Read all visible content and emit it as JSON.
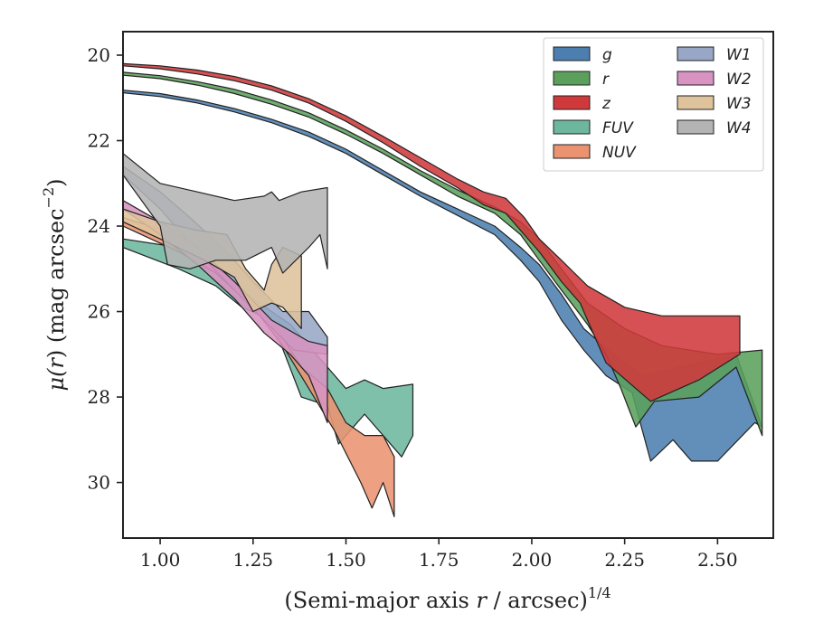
{
  "chart_data": {
    "type": "area",
    "title": "",
    "xlabel": "(Semi-major axis r / arcsec)^1/4",
    "ylabel": "μ(r) (mag arcsec^−2)",
    "xlabel_parts": {
      "pre": "(Semi-major axis ",
      "var": "r",
      "post": " / arcsec)",
      "sup": "1/4"
    },
    "ylabel_parts": {
      "mu": "μ(",
      "var": "r",
      "post": ") (mag arcsec",
      "sup": "−2",
      "close": ")"
    },
    "xlim": [
      0.9,
      2.65
    ],
    "ylim": [
      31.3,
      19.45
    ],
    "y_inverted": true,
    "x_ticks": [
      1.0,
      1.25,
      1.5,
      1.75,
      2.0,
      2.25,
      2.5
    ],
    "x_tick_labels": [
      "1.00",
      "1.25",
      "1.50",
      "1.75",
      "2.00",
      "2.25",
      "2.50"
    ],
    "y_ticks": [
      20,
      22,
      24,
      26,
      28,
      30
    ],
    "y_tick_labels": [
      "20",
      "22",
      "24",
      "26",
      "28",
      "30"
    ],
    "grid": false,
    "legend_position": "top-right",
    "legend_columns": 2,
    "series": [
      {
        "name": "g",
        "color": "#4c7fb0",
        "upper": [
          [
            0.9,
            20.82
          ],
          [
            1.0,
            20.9
          ],
          [
            1.1,
            21.05
          ],
          [
            1.2,
            21.25
          ],
          [
            1.3,
            21.5
          ],
          [
            1.4,
            21.8
          ],
          [
            1.5,
            22.2
          ],
          [
            1.6,
            22.7
          ],
          [
            1.7,
            23.2
          ],
          [
            1.8,
            23.6
          ],
          [
            1.9,
            24.0
          ],
          [
            1.97,
            24.5
          ],
          [
            2.02,
            24.9
          ],
          [
            2.08,
            25.6
          ],
          [
            2.14,
            26.4
          ],
          [
            2.22,
            27.0
          ],
          [
            2.3,
            27.5
          ],
          [
            2.4,
            27.3
          ],
          [
            2.55,
            27.0
          ],
          [
            2.62,
            28.7
          ]
        ],
        "lower": [
          [
            0.9,
            20.88
          ],
          [
            1.0,
            20.97
          ],
          [
            1.1,
            21.12
          ],
          [
            1.2,
            21.33
          ],
          [
            1.3,
            21.58
          ],
          [
            1.4,
            21.9
          ],
          [
            1.5,
            22.3
          ],
          [
            1.6,
            22.8
          ],
          [
            1.7,
            23.3
          ],
          [
            1.8,
            23.75
          ],
          [
            1.9,
            24.2
          ],
          [
            1.97,
            24.8
          ],
          [
            2.02,
            25.3
          ],
          [
            2.08,
            26.2
          ],
          [
            2.14,
            26.9
          ],
          [
            2.2,
            27.5
          ],
          [
            2.27,
            27.9
          ],
          [
            2.32,
            29.5
          ],
          [
            2.38,
            29.0
          ],
          [
            2.43,
            29.5
          ],
          [
            2.5,
            29.5
          ],
          [
            2.6,
            28.6
          ]
        ]
      },
      {
        "name": "r",
        "color": "#5aa05c",
        "upper": [
          [
            0.9,
            20.4
          ],
          [
            1.0,
            20.48
          ],
          [
            1.1,
            20.62
          ],
          [
            1.2,
            20.8
          ],
          [
            1.3,
            21.05
          ],
          [
            1.4,
            21.35
          ],
          [
            1.5,
            21.75
          ],
          [
            1.6,
            22.2
          ],
          [
            1.7,
            22.7
          ],
          [
            1.8,
            23.15
          ],
          [
            1.9,
            23.55
          ],
          [
            1.97,
            23.9
          ],
          [
            2.02,
            24.3
          ],
          [
            2.08,
            25.0
          ],
          [
            2.15,
            25.8
          ],
          [
            2.25,
            26.4
          ],
          [
            2.35,
            26.8
          ],
          [
            2.5,
            27.0
          ],
          [
            2.62,
            26.9
          ]
        ],
        "lower": [
          [
            0.9,
            20.47
          ],
          [
            1.0,
            20.55
          ],
          [
            1.1,
            20.7
          ],
          [
            1.2,
            20.9
          ],
          [
            1.3,
            21.15
          ],
          [
            1.4,
            21.45
          ],
          [
            1.5,
            21.85
          ],
          [
            1.6,
            22.3
          ],
          [
            1.7,
            22.8
          ],
          [
            1.8,
            23.3
          ],
          [
            1.9,
            23.7
          ],
          [
            1.97,
            24.2
          ],
          [
            2.02,
            24.8
          ],
          [
            2.08,
            25.5
          ],
          [
            2.15,
            26.3
          ],
          [
            2.2,
            27.0
          ],
          [
            2.24,
            27.8
          ],
          [
            2.28,
            28.7
          ],
          [
            2.33,
            28.1
          ],
          [
            2.45,
            28.0
          ],
          [
            2.55,
            27.3
          ],
          [
            2.62,
            28.9
          ]
        ]
      },
      {
        "name": "z",
        "color": "#d0393b",
        "upper": [
          [
            0.9,
            20.2
          ],
          [
            1.0,
            20.25
          ],
          [
            1.1,
            20.35
          ],
          [
            1.2,
            20.5
          ],
          [
            1.3,
            20.72
          ],
          [
            1.4,
            21.02
          ],
          [
            1.5,
            21.42
          ],
          [
            1.6,
            21.9
          ],
          [
            1.7,
            22.4
          ],
          [
            1.8,
            22.9
          ],
          [
            1.87,
            23.2
          ],
          [
            1.93,
            23.35
          ],
          [
            1.98,
            23.8
          ],
          [
            2.02,
            24.3
          ],
          [
            2.08,
            24.8
          ],
          [
            2.15,
            25.4
          ],
          [
            2.25,
            25.9
          ],
          [
            2.35,
            26.1
          ],
          [
            2.56,
            26.1
          ]
        ],
        "lower": [
          [
            0.9,
            20.25
          ],
          [
            1.0,
            20.32
          ],
          [
            1.1,
            20.44
          ],
          [
            1.2,
            20.6
          ],
          [
            1.3,
            20.82
          ],
          [
            1.4,
            21.12
          ],
          [
            1.5,
            21.55
          ],
          [
            1.6,
            22.05
          ],
          [
            1.7,
            22.6
          ],
          [
            1.8,
            23.1
          ],
          [
            1.87,
            23.5
          ],
          [
            1.93,
            23.7
          ],
          [
            1.98,
            24.2
          ],
          [
            2.02,
            24.6
          ],
          [
            2.08,
            25.3
          ],
          [
            2.13,
            25.8
          ],
          [
            2.2,
            27.2
          ],
          [
            2.32,
            28.1
          ],
          [
            2.45,
            27.6
          ],
          [
            2.56,
            27.0
          ]
        ]
      },
      {
        "name": "FUV",
        "color": "#6db79e",
        "upper": [
          [
            0.9,
            24.3
          ],
          [
            1.05,
            24.5
          ],
          [
            1.2,
            25.4
          ],
          [
            1.35,
            26.3
          ],
          [
            1.45,
            27.3
          ],
          [
            1.5,
            27.8
          ],
          [
            1.55,
            27.6
          ],
          [
            1.6,
            27.8
          ],
          [
            1.68,
            27.7
          ]
        ],
        "lower": [
          [
            0.9,
            24.5
          ],
          [
            1.05,
            25.0
          ],
          [
            1.15,
            25.4
          ],
          [
            1.22,
            25.9
          ],
          [
            1.3,
            26.2
          ],
          [
            1.38,
            28.0
          ],
          [
            1.45,
            28.2
          ],
          [
            1.48,
            29.1
          ],
          [
            1.55,
            28.4
          ],
          [
            1.65,
            29.4
          ],
          [
            1.68,
            28.9
          ]
        ]
      },
      {
        "name": "NUV",
        "color": "#eb9371",
        "upper": [
          [
            0.9,
            23.8
          ],
          [
            1.05,
            24.2
          ],
          [
            1.2,
            25.3
          ],
          [
            1.3,
            26.2
          ],
          [
            1.38,
            27.3
          ],
          [
            1.45,
            27.8
          ],
          [
            1.5,
            28.6
          ],
          [
            1.55,
            28.9
          ],
          [
            1.6,
            28.9
          ],
          [
            1.63,
            29.4
          ]
        ],
        "lower": [
          [
            0.9,
            24.0
          ],
          [
            1.05,
            24.6
          ],
          [
            1.15,
            25.1
          ],
          [
            1.25,
            25.9
          ],
          [
            1.33,
            26.8
          ],
          [
            1.4,
            27.8
          ],
          [
            1.47,
            28.8
          ],
          [
            1.54,
            30.0
          ],
          [
            1.57,
            30.6
          ],
          [
            1.6,
            30.0
          ],
          [
            1.63,
            30.8
          ]
        ]
      },
      {
        "name": "W1",
        "color": "#99a7c7",
        "upper": [
          [
            0.9,
            22.6
          ],
          [
            1.0,
            23.2
          ],
          [
            1.08,
            23.8
          ],
          [
            1.18,
            24.6
          ],
          [
            1.25,
            25.3
          ],
          [
            1.33,
            26.0
          ],
          [
            1.4,
            26.0
          ],
          [
            1.45,
            26.6
          ]
        ],
        "lower": [
          [
            0.9,
            22.8
          ],
          [
            1.0,
            23.6
          ],
          [
            1.1,
            24.6
          ],
          [
            1.2,
            25.5
          ],
          [
            1.28,
            26.2
          ],
          [
            1.36,
            26.9
          ],
          [
            1.45,
            27.0
          ]
        ]
      },
      {
        "name": "W2",
        "color": "#d893c2",
        "upper": [
          [
            0.9,
            23.4
          ],
          [
            1.0,
            23.9
          ],
          [
            1.1,
            24.5
          ],
          [
            1.2,
            25.3
          ],
          [
            1.3,
            26.2
          ],
          [
            1.4,
            26.7
          ],
          [
            1.45,
            26.8
          ]
        ],
        "lower": [
          [
            0.9,
            23.6
          ],
          [
            1.0,
            24.2
          ],
          [
            1.1,
            24.9
          ],
          [
            1.2,
            25.7
          ],
          [
            1.28,
            26.5
          ],
          [
            1.35,
            27.0
          ],
          [
            1.4,
            27.5
          ],
          [
            1.45,
            28.6
          ]
        ]
      },
      {
        "name": "W3",
        "color": "#dec39c",
        "upper": [
          [
            0.9,
            23.6
          ],
          [
            1.0,
            23.9
          ],
          [
            1.1,
            24.1
          ],
          [
            1.18,
            24.2
          ],
          [
            1.23,
            25.0
          ],
          [
            1.28,
            25.5
          ],
          [
            1.3,
            24.9
          ],
          [
            1.33,
            24.5
          ],
          [
            1.38,
            24.7
          ]
        ],
        "lower": [
          [
            0.9,
            23.9
          ],
          [
            1.0,
            24.3
          ],
          [
            1.12,
            24.8
          ],
          [
            1.2,
            25.2
          ],
          [
            1.25,
            26.0
          ],
          [
            1.3,
            25.8
          ],
          [
            1.33,
            25.9
          ],
          [
            1.38,
            26.4
          ]
        ]
      },
      {
        "name": "W4",
        "color": "#b4b4b4",
        "upper": [
          [
            0.9,
            22.3
          ],
          [
            1.0,
            23.0
          ],
          [
            1.1,
            23.2
          ],
          [
            1.2,
            23.4
          ],
          [
            1.28,
            23.3
          ],
          [
            1.3,
            23.2
          ],
          [
            1.32,
            23.4
          ],
          [
            1.38,
            23.2
          ],
          [
            1.45,
            23.1
          ]
        ],
        "lower": [
          [
            0.9,
            22.8
          ],
          [
            1.0,
            24.0
          ],
          [
            1.02,
            24.9
          ],
          [
            1.08,
            25.0
          ],
          [
            1.15,
            24.8
          ],
          [
            1.23,
            24.8
          ],
          [
            1.3,
            24.5
          ],
          [
            1.33,
            25.1
          ],
          [
            1.4,
            24.5
          ],
          [
            1.43,
            24.2
          ],
          [
            1.45,
            25.0
          ]
        ]
      }
    ]
  }
}
